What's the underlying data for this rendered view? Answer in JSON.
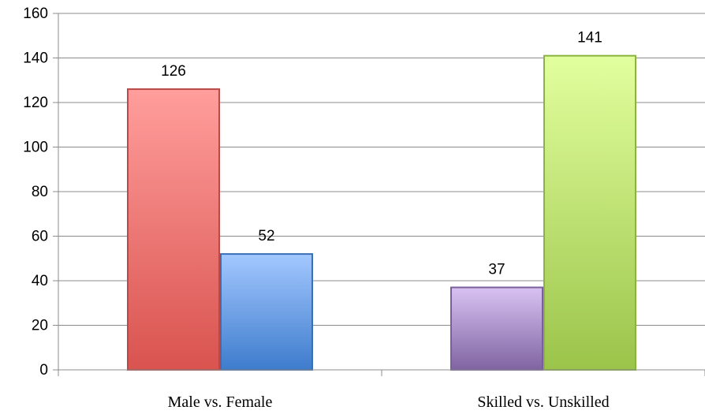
{
  "chart_data": {
    "type": "bar",
    "title": "",
    "xlabel": "",
    "ylabel": "",
    "ylim": [
      0,
      160
    ],
    "yticks": [
      0,
      20,
      40,
      60,
      80,
      100,
      120,
      140,
      160
    ],
    "grid": true,
    "legend": "none",
    "categories": [
      "Male vs. Female",
      "Skilled vs. Unskilled"
    ],
    "bars": [
      {
        "category": "Male vs. Female",
        "value": 126,
        "color": "#d9534f",
        "color_light": "#ff9e9c",
        "border": "#b94a48"
      },
      {
        "category": "Male vs. Female",
        "value": 52,
        "color": "#3e7ccc",
        "color_light": "#a3c8ff",
        "border": "#3a6fb5"
      },
      {
        "category": "Skilled vs. Unskilled",
        "value": 37,
        "color": "#8064a2",
        "color_light": "#d8c2f2",
        "border": "#7a5f9c"
      },
      {
        "category": "Skilled vs. Unskilled",
        "value": 141,
        "color": "#9bc44a",
        "color_light": "#e2ff9e",
        "border": "#8ab33f"
      }
    ]
  }
}
